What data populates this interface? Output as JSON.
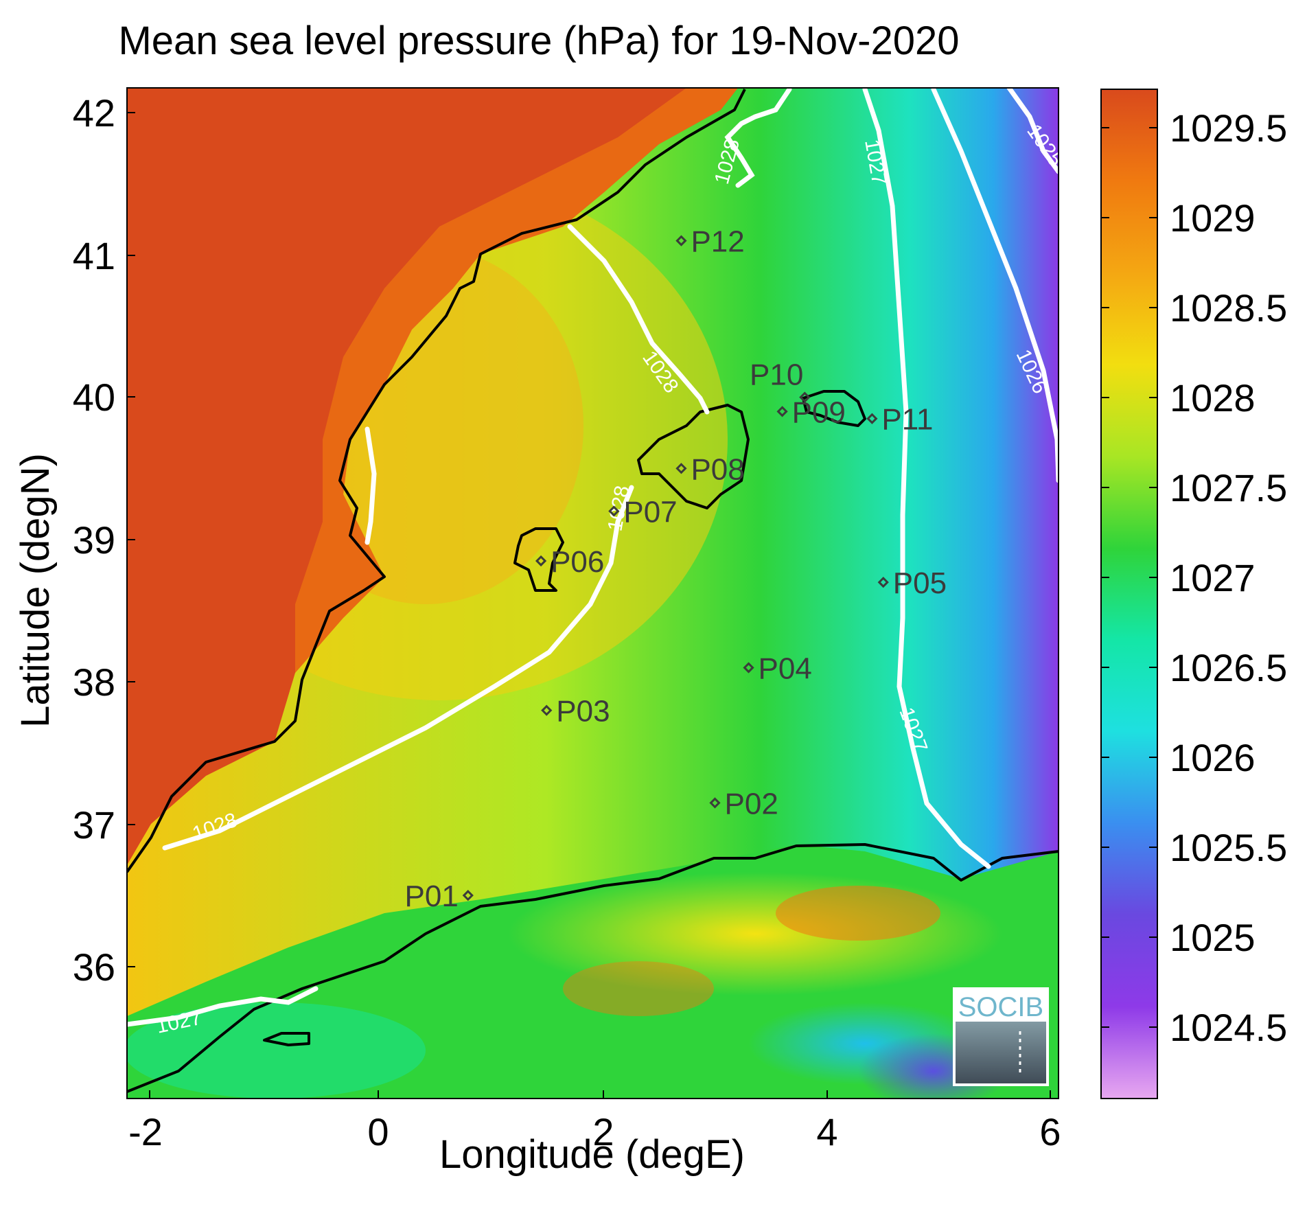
{
  "title": "Mean sea level pressure (hPa) for 19-Nov-2020",
  "x_axis": {
    "label": "Longitude (degE)",
    "ticks": [
      "-2",
      "0",
      "2",
      "4",
      "6"
    ]
  },
  "y_axis": {
    "label": "Latitude (degN)",
    "ticks": [
      "42",
      "41",
      "40",
      "39",
      "38",
      "37",
      "36"
    ]
  },
  "colorbar": {
    "ticks": [
      "1029.5",
      "1029",
      "1028.5",
      "1028",
      "1027.5",
      "1027",
      "1026.5",
      "1026",
      "1025.5",
      "1025",
      "1024.5"
    ],
    "colors": [
      "#d94a1c",
      "#f07a10",
      "#f4a712",
      "#f2de10",
      "#a8e624",
      "#2fd43a",
      "#14e6a6",
      "#1ee0e0",
      "#3a8ff0",
      "#6a48e0",
      "#8e3ae8",
      "#e8a8f0"
    ]
  },
  "contours": [
    {
      "label": "1028"
    },
    {
      "label": "1028"
    },
    {
      "label": "1028"
    },
    {
      "label": "1028"
    },
    {
      "label": "1027"
    },
    {
      "label": "1027"
    },
    {
      "label": "1027"
    },
    {
      "label": "1026"
    },
    {
      "label": "1025"
    }
  ],
  "stations": [
    {
      "name": "P01",
      "lon": 0.8,
      "lat": 36.5
    },
    {
      "name": "P02",
      "lon": 3.0,
      "lat": 37.15
    },
    {
      "name": "P03",
      "lon": 1.5,
      "lat": 37.8
    },
    {
      "name": "P04",
      "lon": 3.3,
      "lat": 38.1
    },
    {
      "name": "P05",
      "lon": 4.5,
      "lat": 38.7
    },
    {
      "name": "P06",
      "lon": 1.45,
      "lat": 38.85
    },
    {
      "name": "P07",
      "lon": 2.1,
      "lat": 39.2
    },
    {
      "name": "P08",
      "lon": 2.7,
      "lat": 39.5
    },
    {
      "name": "P09",
      "lon": 3.6,
      "lat": 39.9
    },
    {
      "name": "P10",
      "lon": 3.8,
      "lat": 40.0
    },
    {
      "name": "P11",
      "lon": 4.4,
      "lat": 39.85
    },
    {
      "name": "P12",
      "lon": 2.7,
      "lat": 41.1
    }
  ],
  "logo": {
    "text": "SOCIB"
  }
}
